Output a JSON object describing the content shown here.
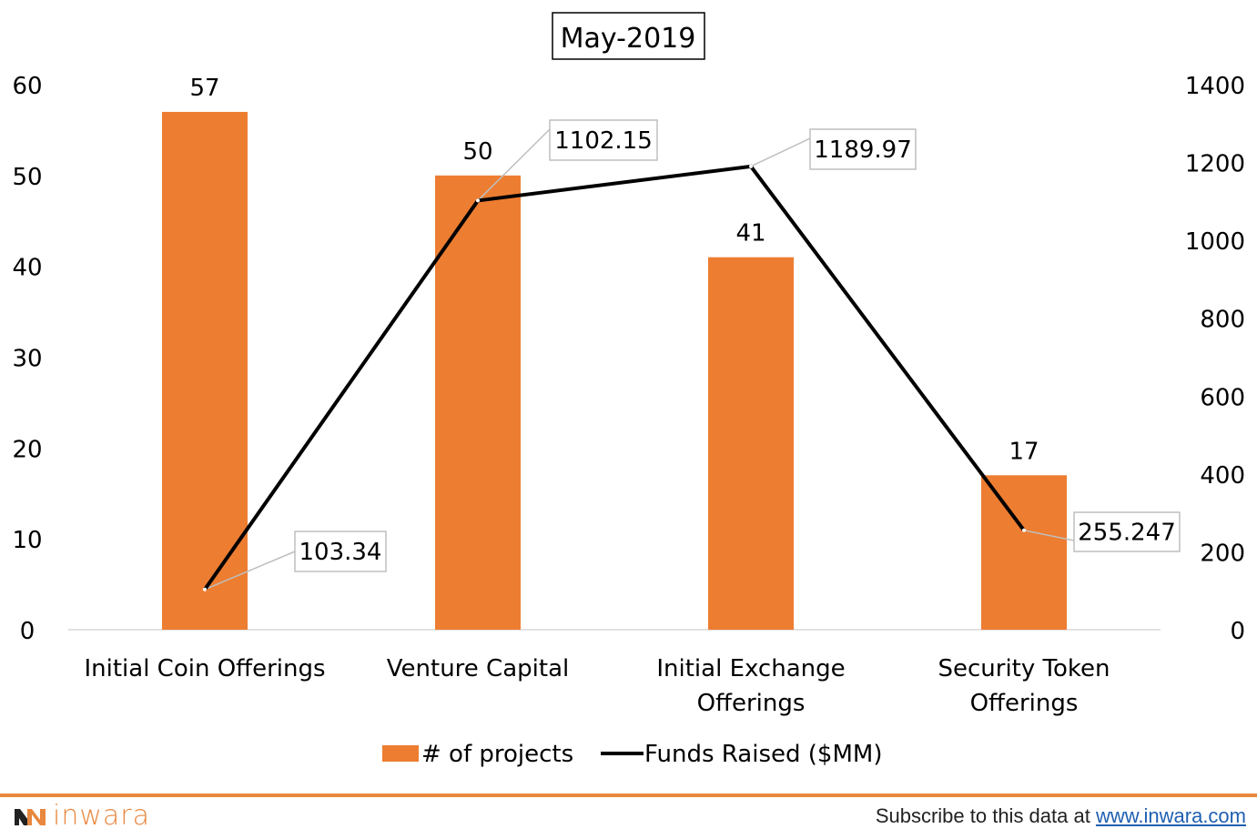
{
  "chart_data": {
    "type": "bar+line",
    "title": "May-2019",
    "categories": [
      [
        "Initial Coin Offerings"
      ],
      [
        "Venture Capital"
      ],
      [
        "Initial Exchange",
        "Offerings"
      ],
      [
        "Security Token",
        "Offerings"
      ]
    ],
    "series": [
      {
        "name": "# of projects",
        "type": "bar",
        "axis": "left",
        "values": [
          57,
          50,
          41,
          17
        ],
        "labels": [
          "57",
          "50",
          "41",
          "17"
        ],
        "color": "#ed7d31"
      },
      {
        "name": "Funds Raised ($MM)",
        "type": "line",
        "axis": "right",
        "values": [
          103.34,
          1102.15,
          1189.97,
          255.247
        ],
        "labels": [
          "103.34",
          "1102.15",
          "1189.97",
          "255.247"
        ],
        "color": "#000000"
      }
    ],
    "left_axis": {
      "min": 0,
      "max": 60,
      "ticks": [
        "0",
        "10",
        "20",
        "30",
        "40",
        "50",
        "60"
      ]
    },
    "right_axis": {
      "min": 0,
      "max": 1400,
      "ticks": [
        "0",
        "200",
        "400",
        "600",
        "800",
        "1000",
        "1200",
        "1400"
      ]
    },
    "grid": false,
    "legend_position": "bottom"
  },
  "footer": {
    "logo_text": "inwara",
    "subscribe_text": "Subscribe to this data at ",
    "link_text": "www.inwara.com"
  }
}
